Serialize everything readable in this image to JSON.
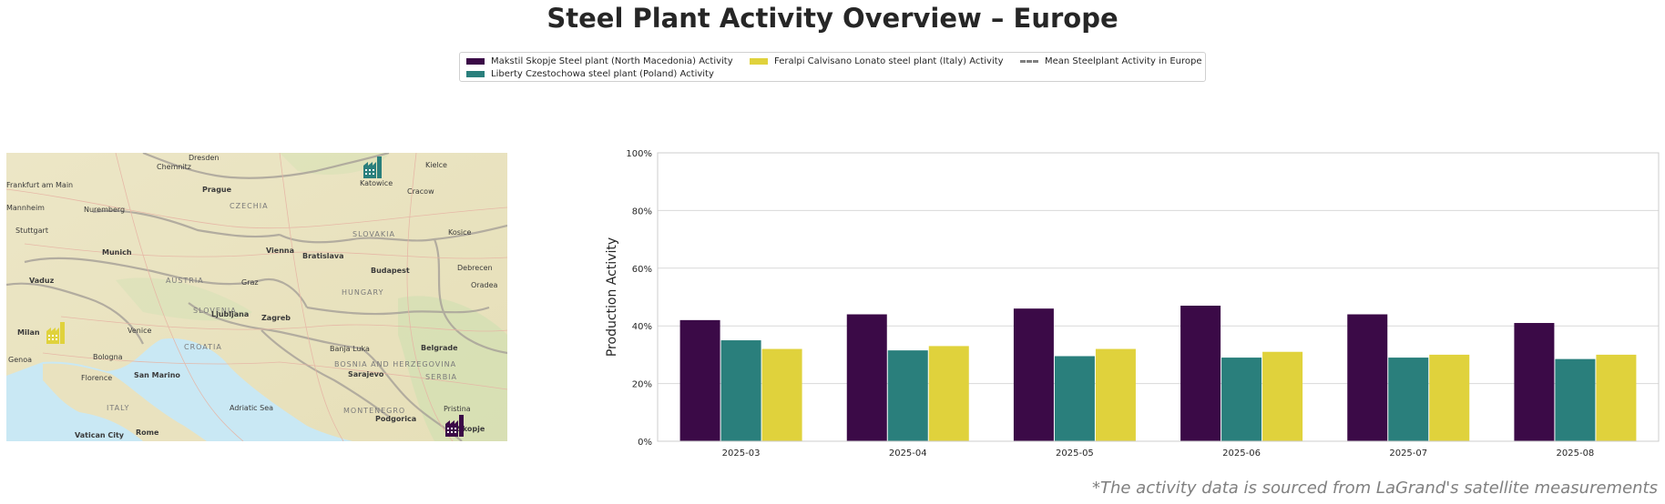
{
  "title": "Steel Plant Activity Overview – Europe",
  "legend": {
    "items": [
      {
        "label": "Makstil Skopje Steel plant (North Macedonia) Activity",
        "color": "#3b0a47"
      },
      {
        "label": "Liberty Czestochowa steel plant (Poland) Activity",
        "color": "#2a7f7c"
      },
      {
        "label": "Feralpi Calvisano Lonato steel plant (Italy) Activity",
        "color": "#e0d23c"
      },
      {
        "label": "Mean Steelplant Activity in Europe",
        "color": "#808080"
      }
    ]
  },
  "map": {
    "labels": [
      "Dresden",
      "Chemnitz",
      "Frankfurt am Main",
      "Mannheim",
      "Nuremberg",
      "Prague",
      "CZECHIA",
      "Stuttgart",
      "Munich",
      "Vienna",
      "Bratislava",
      "SLOVAKIA",
      "Kosice",
      "Kielce",
      "Katowice",
      "Cracow",
      "Budapest",
      "Debrecen",
      "Vaduz",
      "AUSTRIA",
      "Graz",
      "HUNGARY",
      "Oradea",
      "SLOVENIA",
      "Ljubljana",
      "Zagreb",
      "Milan",
      "Venice",
      "CROATIA",
      "Genoa",
      "Bologna",
      "Banja Luka",
      "BOSNIA AND HERZEGOVINA",
      "Belgrade",
      "Florence",
      "San Marino",
      "Sarajevo",
      "SERBIA",
      "ITALY",
      "Adriatic Sea",
      "MONTENEGRO",
      "Podgorica",
      "Pristina",
      "Vatican City",
      "Rome",
      "Skopje"
    ],
    "plants": [
      {
        "name": "Liberty Czestochowa",
        "color": "#2a7f7c"
      },
      {
        "name": "Feralpi Calvisano Lonato",
        "color": "#e0d23c"
      },
      {
        "name": "Makstil Skopje",
        "color": "#3b0a47"
      }
    ]
  },
  "chart_data": {
    "type": "bar",
    "categories": [
      "2025-03",
      "2025-04",
      "2025-05",
      "2025-06",
      "2025-07",
      "2025-08"
    ],
    "series": [
      {
        "name": "Makstil Skopje Steel plant (North Macedonia) Activity",
        "color": "#3b0a47",
        "values": [
          42,
          44,
          46,
          47,
          44,
          41
        ]
      },
      {
        "name": "Liberty Czestochowa steel plant (Poland) Activity",
        "color": "#2a7f7c",
        "values": [
          35,
          31.5,
          29.5,
          29,
          29,
          28.5
        ]
      },
      {
        "name": "Feralpi Calvisano Lonato steel plant (Italy) Activity",
        "color": "#e0d23c",
        "values": [
          32,
          33,
          32,
          31,
          30,
          30
        ]
      }
    ],
    "ylabel": "Production Activity",
    "xlabel": "",
    "ylim": [
      0,
      100
    ],
    "yticks": [
      "0%",
      "20%",
      "40%",
      "60%",
      "80%",
      "100%"
    ],
    "grid": true
  },
  "source_note": "*The activity data is sourced from LaGrand's satellite measurements"
}
